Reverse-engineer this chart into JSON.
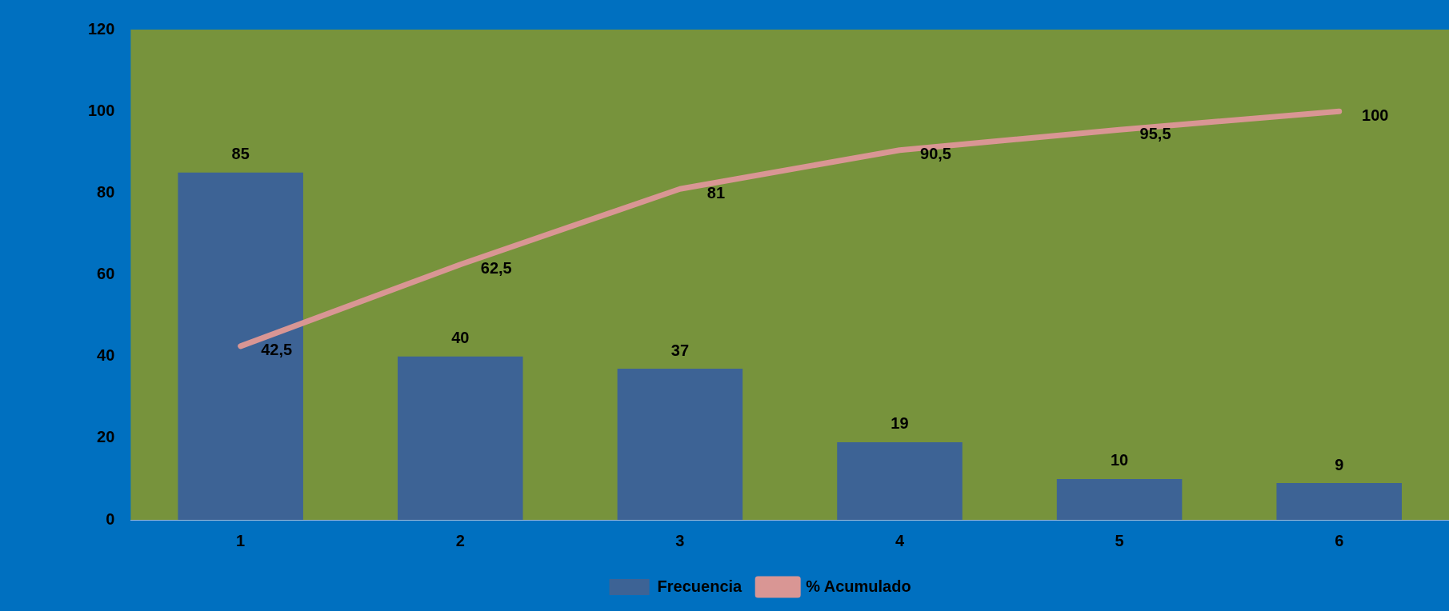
{
  "chart_data": {
    "type": "bar",
    "categories": [
      "1",
      "2",
      "3",
      "4",
      "5",
      "6"
    ],
    "series": [
      {
        "name": "Frecuencia",
        "color": "#3d6395",
        "values": [
          85,
          40,
          37,
          19,
          10,
          9
        ],
        "value_labels": [
          "85",
          "40",
          "37",
          "19",
          "10",
          "9"
        ]
      },
      {
        "name": "% Acumulado",
        "type": "line",
        "color": "#d99694",
        "values": [
          42.5,
          62.5,
          81,
          90.5,
          95.5,
          100
        ],
        "value_labels": [
          "42,5",
          "62,5",
          "81",
          "90,5",
          "95,5",
          "100"
        ]
      }
    ],
    "ylim": [
      0,
      120
    ],
    "yticks": [
      0,
      20,
      40,
      60,
      80,
      100,
      120
    ],
    "grid": false,
    "legend": "bottom"
  }
}
